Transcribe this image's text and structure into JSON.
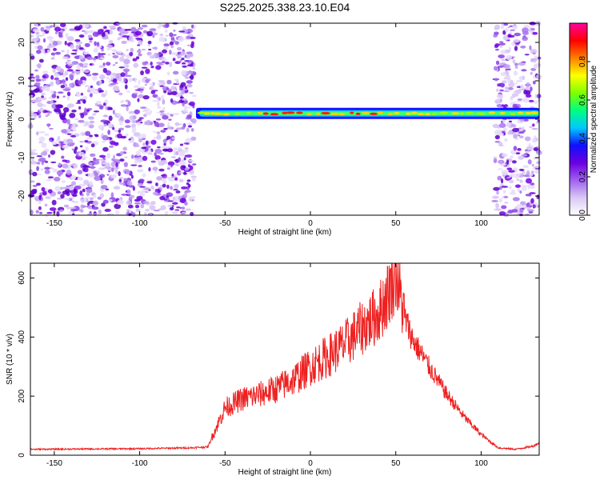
{
  "figure_title": "S225.2025.338.23.10.E04",
  "chart_data": [
    {
      "type": "heatmap",
      "title": "S225.2025.338.23.10.E04",
      "xlabel": "Height of straight line (km)",
      "ylabel": "Frequency (Hz)",
      "xlim": [
        -164,
        134
      ],
      "ylim": [
        -25,
        25
      ],
      "xticks": [
        -150,
        -100,
        -50,
        0,
        50,
        100
      ],
      "yticks": [
        -20,
        -10,
        0,
        10,
        20
      ],
      "colorbar": {
        "label": "Normalized spectral amplitude",
        "range": [
          0,
          1
        ],
        "ticks": [
          0.0,
          0.2,
          0.4,
          0.6,
          0.8
        ],
        "colors": [
          "#ffffff",
          "#d9c8f5",
          "#a060f0",
          "#6a00e0",
          "#1010ff",
          "#00c8ff",
          "#00ff80",
          "#80ff00",
          "#ffff00",
          "#ff8000",
          "#ff0000",
          "#ff00a0"
        ]
      },
      "noise_regions_km": [
        [
          -164,
          -68
        ],
        [
          108,
          134
        ]
      ],
      "signal_band": {
        "x_range_km": [
          -67,
          134
        ],
        "frequency_hz": 1.5,
        "peak_x_km": [
          -30,
          50
        ]
      }
    },
    {
      "type": "line",
      "title": "",
      "xlabel": "Height of straight line (km)",
      "ylabel": "SNR (10 * v/v)",
      "xlim": [
        -164,
        134
      ],
      "ylim": [
        0,
        650
      ],
      "xticks": [
        -150,
        -100,
        -50,
        0,
        50,
        100
      ],
      "yticks": [
        0,
        200,
        400,
        600
      ],
      "line_color": "#ee2020",
      "series": [
        {
          "name": "SNR",
          "x": [
            -164,
            -100,
            -70,
            -60,
            -57,
            -55,
            -50,
            -40,
            -30,
            -20,
            -10,
            0,
            10,
            20,
            30,
            40,
            45,
            50,
            55,
            60,
            70,
            80,
            90,
            100,
            110,
            120,
            130,
            134
          ],
          "y": [
            20,
            22,
            25,
            28,
            70,
            95,
            160,
            190,
            205,
            225,
            255,
            300,
            335,
            375,
            430,
            480,
            540,
            620,
            470,
            390,
            295,
            205,
            130,
            70,
            25,
            20,
            30,
            42
          ]
        }
      ]
    }
  ]
}
